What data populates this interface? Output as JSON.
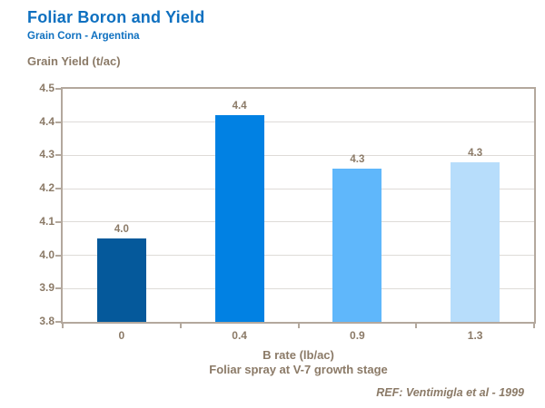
{
  "header": {
    "title": "Foliar Boron and Yield",
    "subtitle": "Grain Corn - Argentina"
  },
  "chart_data": {
    "type": "bar",
    "title": "Foliar Boron and Yield",
    "subtitle": "Grain Corn - Argentina",
    "y_axis_title": "Grain Yield (t/ac)",
    "x_axis_title": "B rate (lb/ac)",
    "x_axis_subtitle": "Foliar spray at V-7 growth stage",
    "categories": [
      "0",
      "0.4",
      "0.9",
      "1.3"
    ],
    "values": [
      4.05,
      4.42,
      4.26,
      4.28
    ],
    "data_labels": [
      "4.0",
      "4.4",
      "4.3",
      "4.3"
    ],
    "bar_colors": [
      "#05599b",
      "#0181e3",
      "#5fb7fb",
      "#b7ddfb"
    ],
    "ylim": [
      3.8,
      4.5
    ],
    "y_ticks": [
      "4.5",
      "4.4",
      "4.3",
      "4.2",
      "4.1",
      "4.0",
      "3.9",
      "3.8"
    ],
    "grid": true,
    "legend": false
  },
  "footer": {
    "ref": "REF: Ventimigla et al - 1999"
  },
  "colors": {
    "title_blue": "#0e70c0",
    "text_brown": "#8b7a67",
    "axis": "#b3a89d",
    "gridline": "#dedbd8"
  }
}
